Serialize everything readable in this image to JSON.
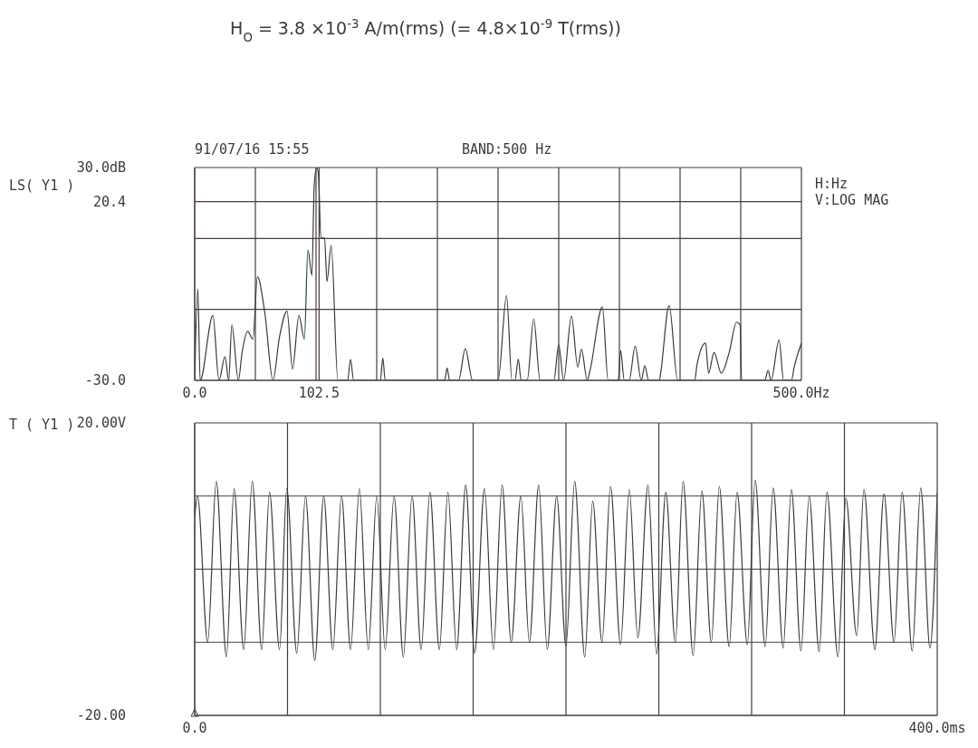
{
  "chart_data": [
    {
      "type": "line",
      "title": "H$_{O}$ = 3.8 ×10$^{-3}$  A/m(rms) (= 4.8×10$^{-9}$ T(rms))",
      "ylabel": "LS( Y1 )",
      "annotations": [
        "91/07/16 15:55",
        "BAND:500 Hz",
        "H:Hz",
        "V:LOG MAG"
      ],
      "x": [
        0,
        2.6,
        4.5,
        15,
        20,
        25,
        28,
        30.6,
        36,
        39,
        43.6,
        48,
        51.7,
        57.8,
        64.5,
        69.8,
        76.1,
        80.6,
        85.9,
        90.4,
        93.3,
        96.6,
        98.5,
        100.4,
        102,
        104,
        107,
        109,
        112.5,
        118,
        126,
        128.4,
        131,
        153,
        155,
        157,
        206,
        208,
        210,
        217.5,
        223,
        229,
        250,
        257,
        261.5,
        264,
        266.7,
        269,
        274,
        279.4,
        284.6,
        296,
        300,
        304,
        310.5,
        315.7,
        318.7,
        323.5,
        325.8,
        336,
        340.7,
        349,
        351,
        354,
        358,
        363,
        368,
        371,
        374,
        383,
        384,
        391,
        398,
        412,
        414,
        421,
        423.5,
        428,
        434,
        440.5,
        446.6,
        449.5,
        450.7,
        469.8,
        472.5,
        475,
        481.6,
        485.3,
        491.8,
        494,
        500
      ],
      "series": [
        {
          "color": "#3a3a3a",
          "values": [
            -30,
            -4.3,
            -30,
            -11.7,
            -30,
            -23.3,
            -30,
            -14.4,
            -30,
            -22.3,
            -16.2,
            -18.4,
            -0.8,
            -11,
            -30,
            -17.9,
            -10.5,
            -26.8,
            -11.7,
            -18.4,
            6.8,
            -0.4,
            25,
            30,
            28,
            10,
            10.2,
            -2.1,
            8,
            -30,
            -30,
            -24.1,
            -30,
            -30,
            -23.7,
            -30,
            -30,
            -26.5,
            -30,
            -30,
            -21.1,
            -30,
            -30,
            -6.1,
            -30,
            -30,
            -24,
            -30,
            -30,
            -12.7,
            -30,
            -30,
            -20,
            -30,
            -11.9,
            -26.3,
            -21.2,
            -30,
            -27.2,
            -9.3,
            -30,
            -30,
            -21.6,
            -30,
            -30,
            -20.4,
            -30,
            -25.9,
            -30,
            -30,
            -28,
            -8.9,
            -30,
            -30,
            -25.5,
            -19.5,
            -28,
            -22.1,
            -28,
            -22.1,
            -13.6,
            -14.4,
            -30,
            -30,
            -27.2,
            -30,
            -18.6,
            -30,
            -30,
            -26.3,
            -19.5
          ]
        }
      ],
      "xlim": [
        0,
        500
      ],
      "xticks": [
        {
          "value": 0,
          "label": "0.0"
        },
        {
          "value": 50,
          "label": null
        },
        {
          "value": 100,
          "label": null
        },
        {
          "value": 150,
          "label": null
        },
        {
          "value": 102.5,
          "label": "102.5"
        },
        {
          "value": 200,
          "label": null
        },
        {
          "value": 250,
          "label": null
        },
        {
          "value": 300,
          "label": null
        },
        {
          "value": 350,
          "label": null
        },
        {
          "value": 400,
          "label": null
        },
        {
          "value": 450,
          "label": null
        },
        {
          "value": 500,
          "label": "500.0Hz"
        }
      ],
      "ylim": [
        -30,
        30
      ],
      "yticks": [
        {
          "value": -30,
          "label": "-30.0"
        },
        {
          "value": -10,
          "label": null
        },
        {
          "value": 10,
          "label": null
        },
        {
          "value": 20.4,
          "label": "20.4"
        },
        {
          "value": 30,
          "label": "30.0dB"
        }
      ],
      "grid": true,
      "legend": false,
      "marker": "none",
      "line_style": "solid"
    },
    {
      "type": "line",
      "ylabel": "T ( Y1 )",
      "x": [
        0,
        1.5,
        7.0,
        11.6,
        17.1,
        21.2,
        26.4,
        31.0,
        36.1,
        40.3,
        45.7,
        49.6,
        55.0,
        59.7,
        64.7,
        69.5,
        74.4,
        79.1,
        84.0,
        88.7,
        93.5,
        98.1,
        102.6,
        107.4,
        112.4,
        117.1,
        122.0,
        126.7,
        131.8,
        136.4,
        141.1,
        146.0,
        150.8,
        156.1,
        160.9,
        165.6,
        170.5,
        175.7,
        180.3,
        185.3,
        189.9,
        195.0,
        200.0,
        204.7,
        210.1,
        214.4,
        219.4,
        224.0,
        229.4,
        234.1,
        238.7,
        244.2,
        248.8,
        253.8,
        258.9,
        263.1,
        268.5,
        273.2,
        278.3,
        282.6,
        287.9,
        292.2,
        297.7,
        301.9,
        307.3,
        311.6,
        317.0,
        321.4,
        326.6,
        331.0,
        336.4,
        340.6,
        346.5,
        350.8,
        356.6,
        360.5,
        366.4,
        371.3,
        376.7,
        381.1,
        386.5,
        391.1,
        396.1,
        400
      ],
      "series": [
        {
          "color": "#3a3a3a",
          "values": [
            7,
            10,
            -10,
            12,
            -12,
            11,
            -11,
            12,
            -11,
            10.5,
            -11,
            11,
            -11.5,
            10,
            -12.5,
            10,
            -11,
            10,
            -11,
            11,
            -11,
            10,
            -11,
            10,
            -12,
            10,
            -11,
            10.5,
            -11,
            10.5,
            -11,
            11.5,
            -11.5,
            11,
            -11,
            11.5,
            -10,
            10,
            -10,
            11.5,
            -11,
            10,
            -10.5,
            12,
            -12,
            9.3,
            -10,
            11.3,
            -10.3,
            10.9,
            -9.4,
            11.5,
            -11.6,
            10.5,
            -10,
            12,
            -11.8,
            10.7,
            -10,
            11.3,
            -10.6,
            10.5,
            -10.3,
            12.2,
            -10.6,
            11.1,
            -10.8,
            10.9,
            -11.2,
            10,
            -11.3,
            10.5,
            -12,
            9.7,
            -9.1,
            10.9,
            -11,
            10.3,
            -10,
            10.5,
            -11.2,
            11.1,
            -10.8,
            10.5
          ]
        }
      ],
      "xlim": [
        0,
        400
      ],
      "xticks": [
        {
          "value": 0,
          "label": "0.0"
        },
        {
          "value": 50,
          "label": null
        },
        {
          "value": 100,
          "label": null
        },
        {
          "value": 150,
          "label": null
        },
        {
          "value": 200,
          "label": null
        },
        {
          "value": 250,
          "label": null
        },
        {
          "value": 300,
          "label": null
        },
        {
          "value": 350,
          "label": null
        },
        {
          "value": 400,
          "label": "400.0ms"
        }
      ],
      "ylim": [
        -20,
        20
      ],
      "yticks": [
        {
          "value": -20,
          "label": "-20.00"
        },
        {
          "value": -10,
          "label": null
        },
        {
          "value": 0,
          "label": null
        },
        {
          "value": 10,
          "label": null
        },
        {
          "value": 20,
          "label": "20.00V"
        }
      ],
      "grid": true,
      "legend": false,
      "marker": "none",
      "line_style": "solid"
    }
  ]
}
